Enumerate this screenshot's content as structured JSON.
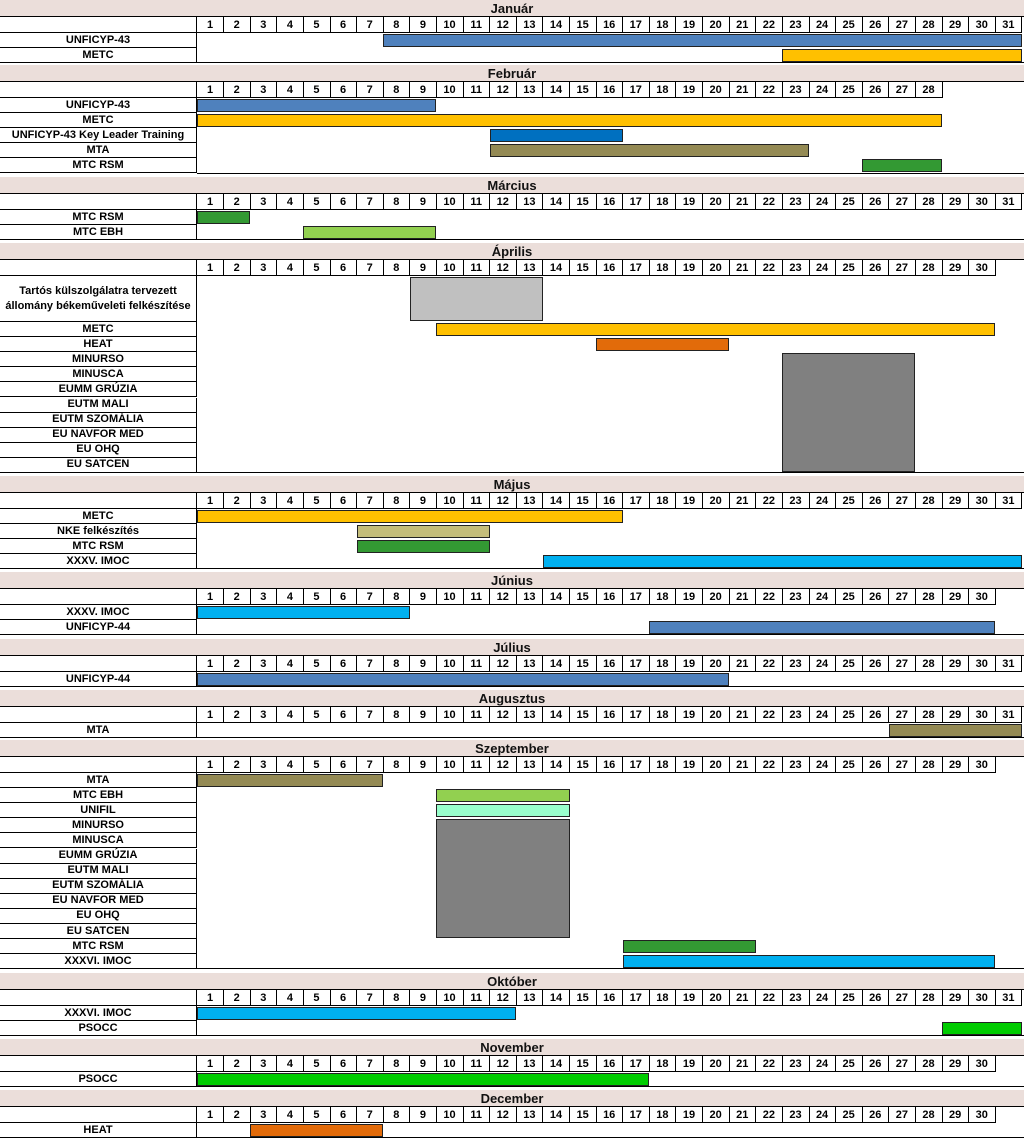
{
  "colors": {
    "blue": "#4f81bd",
    "yellow": "#ffc000",
    "darkblue": "#0070c0",
    "olive": "#948a54",
    "green": "#339933",
    "lightgreen": "#92d050",
    "lightgray": "#c0c0c0",
    "gray": "#808080",
    "orange": "#e26b0a",
    "cyan": "#00b0f0",
    "mint": "#99ffcc",
    "brightgreen": "#00cc00",
    "khaki": "#c4bd7a"
  },
  "months": [
    {
      "name": "Január",
      "days": 31,
      "rows": [
        "UNFICYP-43",
        "METC"
      ],
      "bars": [
        {
          "rows": [
            0
          ],
          "start": 8,
          "end": 31,
          "color": "blue"
        },
        {
          "rows": [
            1
          ],
          "start": 23,
          "end": 31,
          "color": "yellow"
        }
      ]
    },
    {
      "name": "Február",
      "days": 28,
      "rows": [
        "UNFICYP-43",
        "METC",
        "UNFICYP-43 Key Leader Training",
        "MTA",
        "MTC RSM"
      ],
      "bars": [
        {
          "rows": [
            0
          ],
          "start": 1,
          "end": 9,
          "color": "blue"
        },
        {
          "rows": [
            1
          ],
          "start": 1,
          "end": 28,
          "color": "yellow"
        },
        {
          "rows": [
            2
          ],
          "start": 12,
          "end": 16,
          "color": "darkblue"
        },
        {
          "rows": [
            3
          ],
          "start": 12,
          "end": 23,
          "color": "olive"
        },
        {
          "rows": [
            4
          ],
          "start": 26,
          "end": 28,
          "color": "green"
        }
      ]
    },
    {
      "name": "Március",
      "days": 31,
      "rows": [
        "MTC RSM",
        "MTC EBH"
      ],
      "bars": [
        {
          "rows": [
            0
          ],
          "start": 1,
          "end": 2,
          "color": "green"
        },
        {
          "rows": [
            1
          ],
          "start": 5,
          "end": 9,
          "color": "lightgreen"
        }
      ]
    },
    {
      "name": "Április",
      "days": 30,
      "rows": [
        "Tartós külszolgálatra tervezett állomány békeműveleti felkészítése",
        "METC",
        "HEAT",
        "MINURSO",
        "MINUSCA",
        "EUMM GRÚZIA",
        "EUTM MALI",
        "EUTM SZOMÁLIA",
        "EU NAVFOR MED",
        "EU OHQ",
        "EU SATCEN"
      ],
      "tall": [
        0
      ],
      "bars": [
        {
          "rows": [
            0
          ],
          "start": 9,
          "end": 13,
          "color": "lightgray"
        },
        {
          "rows": [
            1
          ],
          "start": 10,
          "end": 30,
          "color": "yellow"
        },
        {
          "rows": [
            2
          ],
          "start": 16,
          "end": 20,
          "color": "orange"
        },
        {
          "rows": [
            3,
            10
          ],
          "start": 23,
          "end": 27,
          "color": "gray"
        }
      ]
    },
    {
      "name": "Május",
      "days": 31,
      "rows": [
        "METC",
        "NKE felkészítés",
        "MTC RSM",
        "XXXV. IMOC"
      ],
      "bars": [
        {
          "rows": [
            0
          ],
          "start": 1,
          "end": 16,
          "color": "yellow"
        },
        {
          "rows": [
            1
          ],
          "start": 7,
          "end": 11,
          "color": "khaki"
        },
        {
          "rows": [
            2
          ],
          "start": 7,
          "end": 11,
          "color": "green"
        },
        {
          "rows": [
            3
          ],
          "start": 14,
          "end": 31,
          "color": "cyan"
        }
      ]
    },
    {
      "name": "Június",
      "days": 30,
      "rows": [
        "XXXV. IMOC",
        "UNFICYP-44"
      ],
      "bars": [
        {
          "rows": [
            0
          ],
          "start": 1,
          "end": 8,
          "color": "cyan"
        },
        {
          "rows": [
            1
          ],
          "start": 18,
          "end": 30,
          "color": "blue"
        }
      ]
    },
    {
      "name": "Július",
      "days": 31,
      "rows": [
        "UNFICYP-44"
      ],
      "bars": [
        {
          "rows": [
            0
          ],
          "start": 1,
          "end": 20,
          "color": "blue"
        }
      ]
    },
    {
      "name": "Augusztus",
      "days": 31,
      "rows": [
        "MTA"
      ],
      "bars": [
        {
          "rows": [
            0
          ],
          "start": 27,
          "end": 31,
          "color": "olive"
        }
      ]
    },
    {
      "name": "Szeptember",
      "days": 30,
      "rows": [
        "MTA",
        "MTC EBH",
        "UNIFIL",
        "MINURSO",
        "MINUSCA",
        "EUMM GRÚZIA",
        "EUTM MALI",
        "EUTM SZOMÁLIA",
        "EU NAVFOR MED",
        "EU OHQ",
        "EU SATCEN",
        "MTC RSM",
        "XXXVI. IMOC"
      ],
      "bars": [
        {
          "rows": [
            0
          ],
          "start": 1,
          "end": 7,
          "color": "olive"
        },
        {
          "rows": [
            1
          ],
          "start": 10,
          "end": 14,
          "color": "lightgreen"
        },
        {
          "rows": [
            2
          ],
          "start": 10,
          "end": 14,
          "color": "mint"
        },
        {
          "rows": [
            3,
            10
          ],
          "start": 10,
          "end": 14,
          "color": "gray"
        },
        {
          "rows": [
            11
          ],
          "start": 17,
          "end": 21,
          "color": "green"
        },
        {
          "rows": [
            12
          ],
          "start": 17,
          "end": 30,
          "color": "cyan"
        }
      ]
    },
    {
      "name": "Október",
      "days": 31,
      "rows": [
        "XXXVI. IMOC",
        "PSOCC"
      ],
      "bars": [
        {
          "rows": [
            0
          ],
          "start": 1,
          "end": 12,
          "color": "cyan"
        },
        {
          "rows": [
            1
          ],
          "start": 29,
          "end": 31,
          "color": "brightgreen"
        }
      ]
    },
    {
      "name": "November",
      "days": 30,
      "rows": [
        "PSOCC"
      ],
      "bars": [
        {
          "rows": [
            0
          ],
          "start": 1,
          "end": 17,
          "color": "brightgreen"
        }
      ]
    },
    {
      "name": "December",
      "days": 30,
      "rows": [
        "HEAT"
      ],
      "bars": [
        {
          "rows": [
            0
          ],
          "start": 3,
          "end": 7,
          "color": "orange"
        }
      ]
    }
  ]
}
